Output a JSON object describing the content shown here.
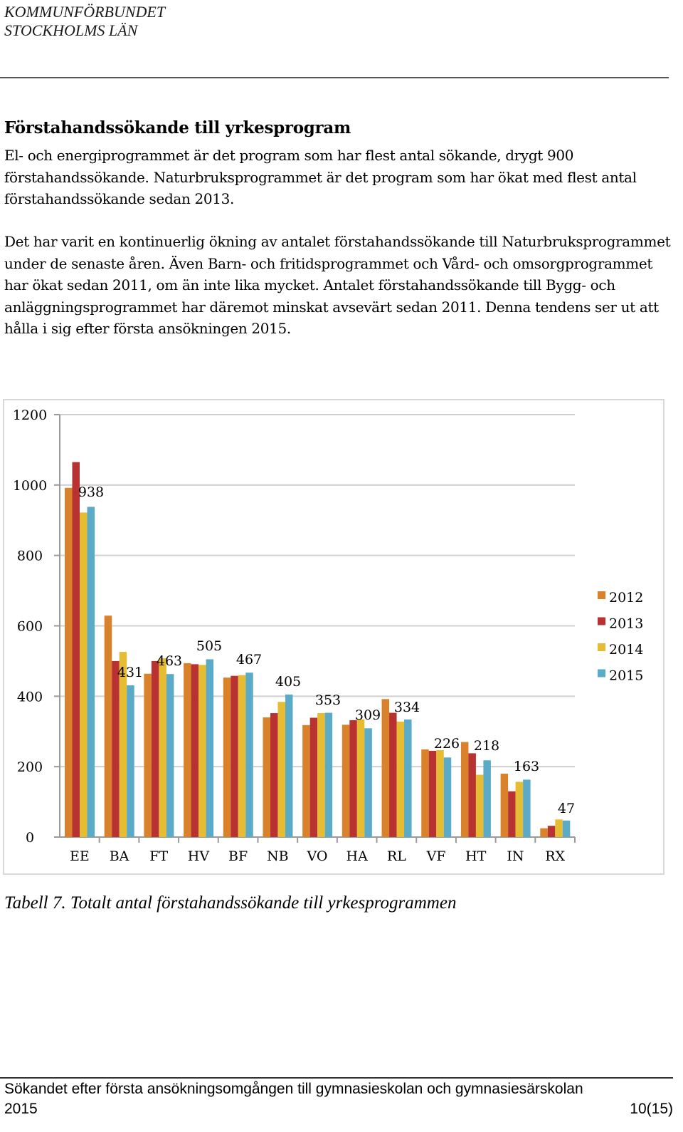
{
  "header": {
    "org_line1": "KOMMUNFÖRBUNDET",
    "org_line2": "STOCKHOLMS LÄN"
  },
  "section": {
    "heading": "Förstahandssökande till yrkesprogram",
    "paragraph1": "El- och energiprogrammet är det program som har flest antal sökande, drygt 900 förstahandssökande. Naturbruksprogrammet är det program som har ökat med flest antal förstahandssökande sedan 2013.",
    "paragraph2": "Det har varit en kontinuerlig ökning av antalet förstahandssökande till Naturbruksprogrammet under de senaste åren. Även Barn- och fritidsprogrammet och Vård- och omsorgprogrammet har ökat sedan 2011, om än inte lika mycket. Antalet förstahandssökande till Bygg- och anläggningsprogrammet har däremot minskat avsevärt sedan 2011. Denna tendens ser ut att hålla i sig efter första ansökningen 2015."
  },
  "chart_data": {
    "type": "bar",
    "categories": [
      "EE",
      "BA",
      "FT",
      "HV",
      "BF",
      "NB",
      "VO",
      "HA",
      "RL",
      "VF",
      "HT",
      "IN",
      "RX"
    ],
    "series": [
      {
        "name": "2012",
        "color": "#d9822b",
        "values": [
          992,
          629,
          464,
          494,
          453,
          340,
          318,
          319,
          392,
          249,
          270,
          180,
          25
        ]
      },
      {
        "name": "2013",
        "color": "#b83232",
        "values": [
          1065,
          500,
          500,
          491,
          458,
          352,
          339,
          332,
          353,
          245,
          238,
          130,
          32
        ]
      },
      {
        "name": "2014",
        "color": "#e6bd32",
        "values": [
          922,
          526,
          508,
          489,
          460,
          384,
          352,
          334,
          328,
          247,
          177,
          157,
          50
        ]
      },
      {
        "name": "2015",
        "color": "#5aaac8",
        "values": [
          938,
          431,
          463,
          505,
          467,
          405,
          353,
          309,
          334,
          226,
          218,
          163,
          47
        ]
      }
    ],
    "data_labels": [
      "938",
      "431",
      "463",
      "505",
      "467",
      "405",
      "353",
      "309",
      "334",
      "226",
      "218",
      "163",
      "47"
    ],
    "y_ticks": [
      "0",
      "200",
      "400",
      "600",
      "800",
      "1000",
      "1200"
    ],
    "ylim": [
      0,
      1200
    ],
    "title": "",
    "xlabel": "",
    "ylabel": "",
    "legend_position": "right",
    "grid": true
  },
  "caption": "Tabell 7.  Totalt antal förstahandssökande till yrkesprogrammen",
  "footer": {
    "line1": "Sökandet efter första ansökningsomgången till gymnasieskolan och gymnasiesärskolan",
    "line2": "2015",
    "page": "10(15)"
  }
}
